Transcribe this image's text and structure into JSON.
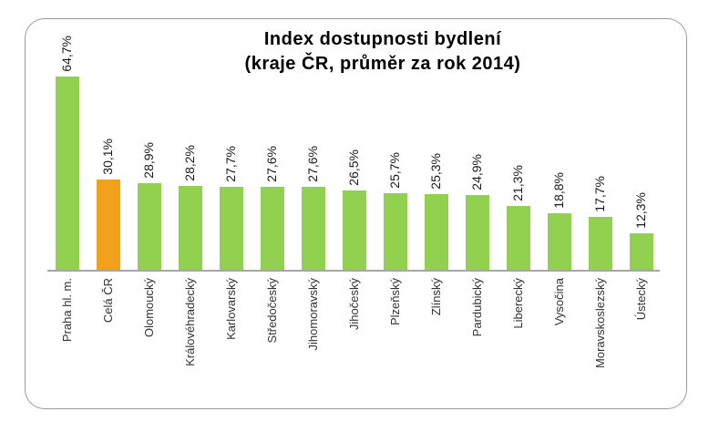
{
  "chart_data": {
    "type": "bar",
    "title": "Index dostupnosti bydlení",
    "subtitle": "(kraje ČR, průměr za rok 2014)",
    "categories": [
      "Praha hl. m.",
      "Celá ČR",
      "Olomoucký",
      "Královéhradecký",
      "Karlovarský",
      "Středočeský",
      "Jihomoravský",
      "Jihočeský",
      "Plzeňský",
      "Zlínský",
      "Pardubický",
      "Liberecký",
      "Vysočina",
      "Moravskoslezský",
      "Ústecký"
    ],
    "values": [
      64.7,
      30.1,
      28.9,
      28.2,
      27.7,
      27.6,
      27.6,
      26.5,
      25.7,
      25.3,
      24.9,
      21.3,
      18.8,
      17.7,
      12.3
    ],
    "value_labels": [
      "64,7%",
      "30,1%",
      "28,9%",
      "28,2%",
      "27,7%",
      "27,6%",
      "27,6%",
      "26,5%",
      "25,7%",
      "25,3%",
      "24,9%",
      "21,3%",
      "18,8%",
      "17,7%",
      "12,3%"
    ],
    "highlight_index": 1,
    "colors": {
      "bar": "#92D050",
      "highlight": "#F2A11C",
      "axis": "#A6A6A6"
    },
    "ylim": [
      0,
      70
    ],
    "grid": false,
    "legend": false,
    "value_label_rotation": 90,
    "category_label_rotation": 90,
    "unit": "%"
  }
}
